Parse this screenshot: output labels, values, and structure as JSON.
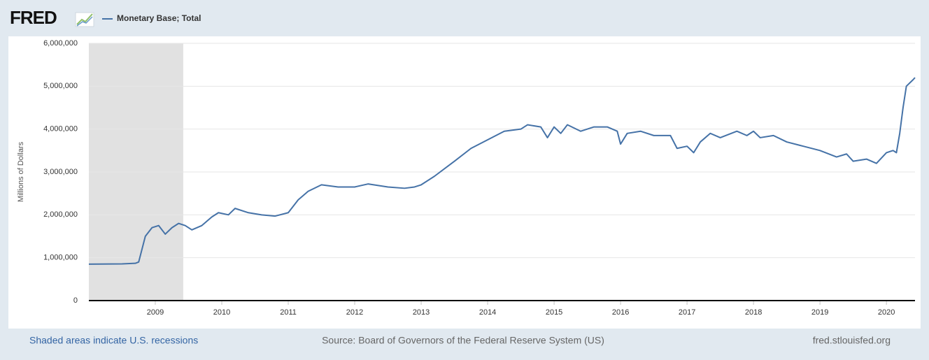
{
  "chart_data": {
    "type": "line",
    "logo": "FRED",
    "ylabel": "Millions of Dollars",
    "recession_note": "Shaded areas indicate U.S. recessions",
    "source": "Source: Board of Governors of the Federal Reserve System (US)",
    "site": "fred.stlouisfed.org",
    "xlim": [
      2008.0,
      2020.43
    ],
    "xticks": [
      2009,
      2010,
      2011,
      2012,
      2013,
      2014,
      2015,
      2016,
      2017,
      2018,
      2019,
      2020
    ],
    "ylim": [
      0,
      6000000
    ],
    "yticks": [
      0,
      {
        "value": 1000000,
        "label": "1,000,000"
      },
      {
        "value": 2000000,
        "label": "2,000,000"
      },
      {
        "value": 3000000,
        "label": "3,000,000"
      },
      {
        "value": 4000000,
        "label": "4,000,000"
      },
      {
        "value": 5000000,
        "label": "5,000,000"
      },
      {
        "value": 6000000,
        "label": "6,000,000"
      }
    ],
    "grid": true,
    "recessions": [
      [
        2008.0,
        2009.42
      ]
    ],
    "recession_color": "#e1e1e1",
    "x": [
      2008.0,
      2008.5,
      2008.7,
      2008.75,
      2008.85,
      2008.95,
      2009.05,
      2009.15,
      2009.25,
      2009.35,
      2009.45,
      2009.55,
      2009.7,
      2009.85,
      2009.95,
      2010.1,
      2010.2,
      2010.4,
      2010.6,
      2010.8,
      2011.0,
      2011.15,
      2011.3,
      2011.5,
      2011.75,
      2012.0,
      2012.2,
      2012.5,
      2012.75,
      2012.9,
      2013.0,
      2013.2,
      2013.5,
      2013.75,
      2014.0,
      2014.25,
      2014.5,
      2014.6,
      2014.8,
      2014.9,
      2015.0,
      2015.1,
      2015.2,
      2015.4,
      2015.6,
      2015.8,
      2015.95,
      2016.0,
      2016.1,
      2016.3,
      2016.5,
      2016.75,
      2016.85,
      2017.0,
      2017.1,
      2017.2,
      2017.35,
      2017.5,
      2017.75,
      2017.9,
      2018.0,
      2018.1,
      2018.3,
      2018.5,
      2018.75,
      2019.0,
      2019.25,
      2019.4,
      2019.5,
      2019.7,
      2019.85,
      2020.0,
      2020.1,
      2020.15,
      2020.2,
      2020.25,
      2020.3,
      2020.4,
      2020.43
    ],
    "series": [
      {
        "name": "Monetary Base; Total",
        "color": "#4572a7",
        "values": [
          850000,
          855000,
          870000,
          900000,
          1500000,
          1700000,
          1750000,
          1550000,
          1700000,
          1800000,
          1750000,
          1650000,
          1750000,
          1950000,
          2050000,
          2000000,
          2150000,
          2050000,
          2000000,
          1970000,
          2050000,
          2350000,
          2550000,
          2700000,
          2650000,
          2650000,
          2720000,
          2650000,
          2620000,
          2650000,
          2700000,
          2900000,
          3250000,
          3550000,
          3750000,
          3950000,
          4000000,
          4100000,
          4050000,
          3800000,
          4050000,
          3900000,
          4100000,
          3950000,
          4050000,
          4050000,
          3950000,
          3650000,
          3900000,
          3950000,
          3850000,
          3850000,
          3550000,
          3600000,
          3450000,
          3700000,
          3900000,
          3800000,
          3950000,
          3850000,
          3950000,
          3800000,
          3850000,
          3700000,
          3600000,
          3500000,
          3350000,
          3420000,
          3250000,
          3300000,
          3200000,
          3450000,
          3500000,
          3450000,
          3900000,
          4500000,
          5000000,
          5150000,
          5200000
        ]
      }
    ]
  }
}
